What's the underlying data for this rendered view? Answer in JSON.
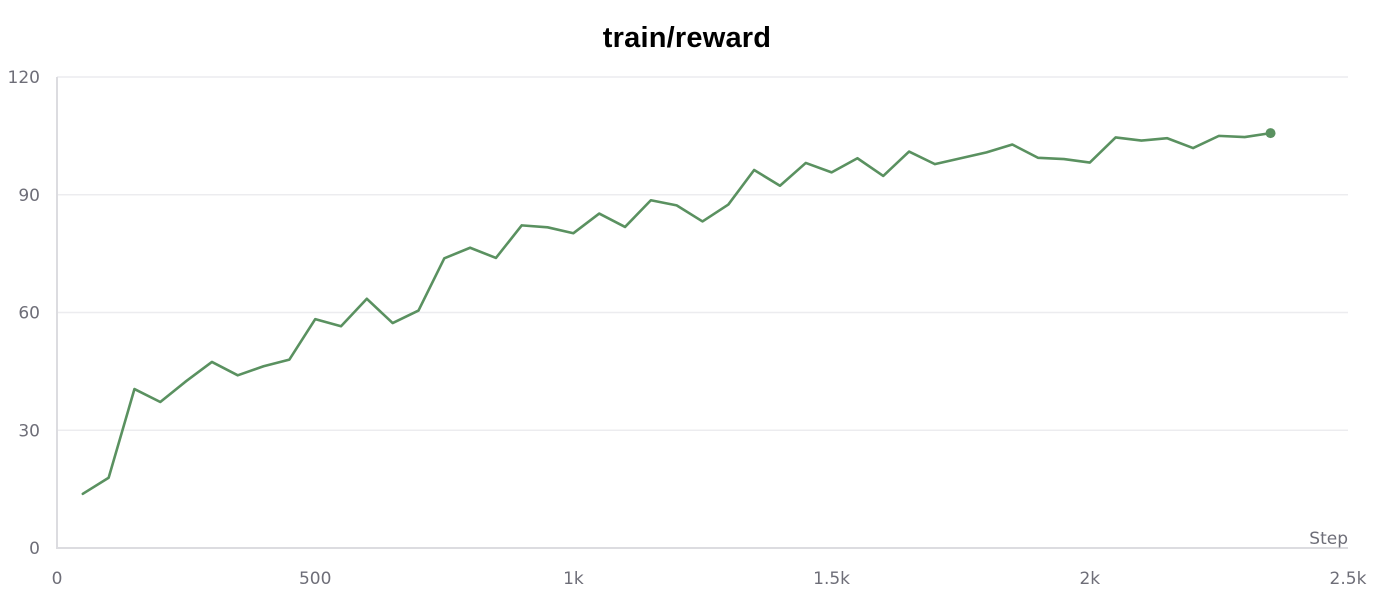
{
  "chart_data": {
    "type": "line",
    "title": "train/reward",
    "xlabel": "Step",
    "ylabel": "",
    "xlim": [
      0,
      2500
    ],
    "ylim": [
      0,
      120
    ],
    "x_ticks": [
      {
        "value": 0,
        "label": "0"
      },
      {
        "value": 500,
        "label": "500"
      },
      {
        "value": 1000,
        "label": "1k"
      },
      {
        "value": 1500,
        "label": "1.5k"
      },
      {
        "value": 2000,
        "label": "2k"
      },
      {
        "value": 2500,
        "label": "2.5k"
      }
    ],
    "y_ticks": [
      {
        "value": 0,
        "label": "0"
      },
      {
        "value": 30,
        "label": "30"
      },
      {
        "value": 60,
        "label": "60"
      },
      {
        "value": 90,
        "label": "90"
      },
      {
        "value": 120,
        "label": "120"
      }
    ],
    "grid": true,
    "series": [
      {
        "color": "#5a9160",
        "x": [
          50,
          100,
          150,
          200,
          250,
          300,
          350,
          400,
          450,
          500,
          550,
          600,
          650,
          700,
          750,
          800,
          850,
          900,
          950,
          1000,
          1050,
          1100,
          1150,
          1200,
          1250,
          1300,
          1350,
          1400,
          1450,
          1500,
          1550,
          1600,
          1650,
          1700,
          1750,
          1800,
          1850,
          1900,
          1950,
          2000,
          2050,
          2100,
          2150,
          2200,
          2250,
          2300,
          2350
        ],
        "y": [
          13.8,
          17.9,
          40.5,
          37.2,
          42.5,
          47.4,
          44.0,
          46.3,
          48.0,
          58.3,
          56.5,
          63.5,
          57.3,
          60.5,
          73.8,
          76.5,
          73.9,
          82.2,
          81.7,
          80.2,
          85.2,
          81.8,
          88.6,
          87.3,
          83.2,
          87.5,
          96.3,
          92.3,
          98.1,
          95.7,
          99.3,
          94.8,
          101.0,
          97.8,
          99.3,
          100.8,
          102.8,
          99.4,
          99.1,
          98.2,
          104.6,
          103.8,
          104.4,
          101.9,
          105.0,
          104.7,
          105.7
        ]
      }
    ]
  }
}
